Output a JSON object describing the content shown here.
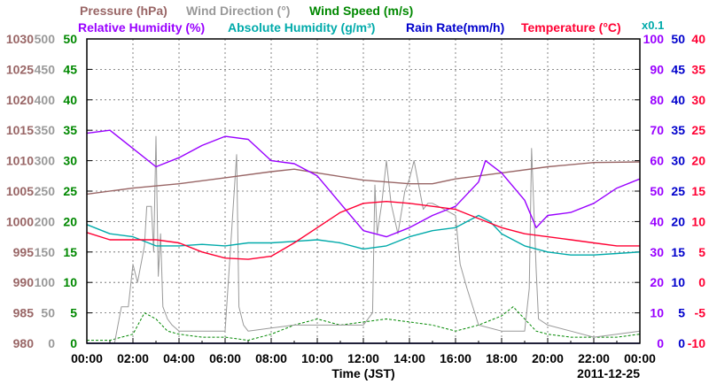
{
  "chart_data": {
    "type": "line",
    "date": "2011-12-25",
    "xlabel": "Time (JST)",
    "x_ticks": [
      "00:00",
      "02:00",
      "04:00",
      "06:00",
      "08:00",
      "10:00",
      "12:00",
      "14:00",
      "16:00",
      "18:00",
      "20:00",
      "22:00",
      "00:00"
    ],
    "legend": [
      {
        "text": "Pressure (hPa)",
        "color": "#996666"
      },
      {
        "text": "Wind Direction (°)",
        "color": "#999999"
      },
      {
        "text": "Wind Speed (m/s)",
        "color": "#008800"
      },
      {
        "text": "Relative Humidity (%)",
        "color": "#9900ff"
      },
      {
        "text": "Absolute Humidity (g/m³)",
        "color": "#00aaaa"
      },
      {
        "text": "Rain Rate(mm/h)",
        "color": "#0000cc"
      },
      {
        "text": "Temperature (°C)",
        "color": "#ff0033"
      }
    ],
    "axes": {
      "pressure": {
        "color": "#996666",
        "range": [
          980,
          1030
        ],
        "ticks": [
          "980",
          "985",
          "990",
          "995",
          "1000",
          "1005",
          "1010",
          "1015",
          "1020",
          "1025",
          "1030"
        ]
      },
      "wind_direction": {
        "color": "#999999",
        "range": [
          0,
          500
        ],
        "ticks": [
          "0",
          "50",
          "100",
          "150",
          "200",
          "250",
          "300",
          "350",
          "400",
          "450",
          "500"
        ]
      },
      "wind_speed": {
        "color": "#008800",
        "range": [
          0,
          50
        ],
        "ticks": [
          "0",
          "5",
          "10",
          "15",
          "20",
          "25",
          "30",
          "35",
          "40",
          "45",
          "50"
        ]
      },
      "rel_humidity": {
        "color": "#9900ff",
        "range": [
          0,
          100
        ],
        "ticks": [
          "0",
          "10",
          "20",
          "30",
          "40",
          "50",
          "60",
          "70",
          "80",
          "90",
          "100"
        ]
      },
      "abs_humidity": {
        "color": "#00aaaa",
        "label": "x0.1",
        "range": [
          0,
          100
        ],
        "ticks": [
          "0",
          "10",
          "20",
          "30",
          "40",
          "50",
          "60",
          "70",
          "80",
          "90",
          "100"
        ]
      },
      "rain_rate": {
        "color": "#0000cc",
        "range": [
          0,
          50
        ],
        "ticks": [
          "0",
          "5",
          "10",
          "15",
          "20",
          "25",
          "30",
          "35",
          "40",
          "45",
          "50"
        ]
      },
      "temperature": {
        "color": "#ff0033",
        "range": [
          -10,
          40
        ],
        "ticks": [
          "-10",
          "-5",
          "0",
          "5",
          "10",
          "15",
          "20",
          "25",
          "30",
          "35",
          "40"
        ]
      }
    },
    "series": [
      {
        "name": "Pressure (hPa)",
        "key": "pressure",
        "color": "#996666",
        "x": [
          0,
          2,
          4,
          6,
          8,
          9,
          10,
          12,
          14,
          15,
          16,
          18,
          20,
          22,
          24
        ],
        "y": [
          1004.5,
          1005.5,
          1006.2,
          1007.2,
          1008.2,
          1008.6,
          1008,
          1006.8,
          1006.2,
          1006.2,
          1007,
          1008,
          1009,
          1009.7,
          1009.8
        ]
      },
      {
        "name": "Relative Humidity (%)",
        "key": "rel_humidity",
        "color": "#9900ff",
        "x": [
          0,
          1,
          2,
          3,
          4,
          5,
          6,
          7,
          8,
          9,
          10,
          11,
          12,
          13,
          14,
          15,
          16,
          17,
          17.3,
          18,
          19,
          19.5,
          20,
          21,
          22,
          23,
          24
        ],
        "y": [
          69,
          70,
          64,
          58,
          61,
          65,
          68,
          67,
          60,
          59,
          55,
          46,
          37,
          35,
          38,
          42,
          45,
          53,
          60,
          56,
          47,
          38,
          42,
          43,
          46,
          51,
          54
        ]
      },
      {
        "name": "Absolute Humidity (g/m³)",
        "key": "abs_humidity",
        "color": "#00aaaa",
        "x": [
          0,
          1,
          2,
          3,
          4,
          5,
          6,
          7,
          8,
          9,
          10,
          11,
          12,
          13,
          14,
          15,
          16,
          16.5,
          17,
          17.5,
          18,
          19,
          20,
          21,
          22,
          23,
          24
        ],
        "y": [
          39,
          36,
          35,
          32,
          32,
          32.5,
          32,
          33,
          33,
          33.5,
          34,
          33,
          31,
          32,
          35,
          37,
          38,
          40,
          42,
          40,
          36,
          32,
          30,
          29,
          29,
          29.5,
          30
        ]
      },
      {
        "name": "Temperature (°C)",
        "key": "temperature",
        "color": "#ff0033",
        "x": [
          0,
          1,
          2,
          3,
          4,
          5,
          6,
          7,
          8,
          9,
          10,
          11,
          12,
          13,
          14,
          15,
          16,
          17,
          18,
          19,
          20,
          21,
          22,
          23,
          24
        ],
        "y": [
          8.2,
          7,
          7,
          7,
          6.5,
          5,
          4,
          3.8,
          4.3,
          6.5,
          9,
          11.5,
          13,
          13.3,
          13,
          12.5,
          12,
          10.5,
          9,
          8,
          7.5,
          7,
          6.5,
          6,
          6
        ]
      },
      {
        "name": "Wind Direction (°)",
        "key": "wind_direction",
        "color": "#999999",
        "x": [
          0,
          1.2,
          1.5,
          1.8,
          2,
          2.2,
          2.5,
          2.6,
          2.8,
          2.9,
          3,
          3.1,
          3.2,
          3.3,
          3.4,
          3.5,
          3.7,
          4,
          5,
          6,
          6.5,
          6.6,
          6.8,
          7,
          8,
          9,
          10,
          11,
          12,
          12.4,
          12.5,
          12.6,
          12.8,
          13,
          13.2,
          13.5,
          13.8,
          14,
          14.2,
          14.5,
          14.6,
          14.8,
          15,
          15.5,
          16,
          16.2,
          16.5,
          17,
          18,
          19,
          19.2,
          19.3,
          19.5,
          19.6,
          20,
          21,
          22,
          23,
          24
        ],
        "y": [
          0,
          0,
          60,
          60,
          130,
          100,
          160,
          225,
          225,
          150,
          340,
          110,
          180,
          60,
          50,
          40,
          30,
          20,
          20,
          20,
          310,
          60,
          30,
          20,
          25,
          30,
          30,
          30,
          30,
          50,
          260,
          180,
          230,
          300,
          230,
          180,
          250,
          270,
          300,
          240,
          220,
          230,
          230,
          220,
          210,
          130,
          90,
          30,
          20,
          20,
          90,
          320,
          120,
          40,
          30,
          20,
          10,
          15,
          20
        ]
      },
      {
        "name": "Wind Speed (m/s)",
        "key": "wind_speed",
        "color": "#008800",
        "x": [
          0,
          1,
          2,
          2.5,
          3,
          3.5,
          4,
          5,
          6,
          7,
          8,
          9,
          10,
          11,
          12,
          13,
          14,
          15,
          16,
          17,
          18,
          18.5,
          19,
          19.5,
          20,
          21,
          22,
          23,
          24
        ],
        "y": [
          0.5,
          0.5,
          1.5,
          5,
          4,
          2,
          1.5,
          1,
          1,
          0.5,
          1.5,
          3,
          4,
          3,
          3.5,
          4,
          3.5,
          3,
          2,
          3,
          4.5,
          6,
          4,
          2,
          1.5,
          1,
          1,
          1,
          1.5
        ]
      },
      {
        "name": "Rain Rate(mm/h)",
        "key": "rain_rate",
        "color": "#0000cc",
        "x": [
          0,
          12,
          24
        ],
        "y": [
          0,
          0,
          0
        ]
      }
    ]
  }
}
